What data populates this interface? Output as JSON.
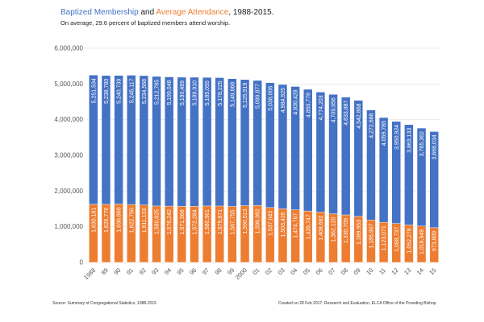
{
  "title": {
    "part1": "Baptized Membership",
    "part2": " and ",
    "part3": "Average Attendance",
    "part4": ", 1988-2015."
  },
  "subtitle": "On average, 29.6 percent of baptized members attend worship.",
  "footer": {
    "source": "Source: Summary of Congregational Statistics, 1988-2015",
    "credit": "Created on 28 Feb 2017; Research and Evaluation, ELCA Office of the Presiding Bishop"
  },
  "chart_data": {
    "type": "bar",
    "title": "Baptized Membership and Average Attendance, 1988-2015.",
    "colors": {
      "membership": "#4472c4",
      "attendance": "#ed7d31"
    },
    "categories": [
      "1988",
      "89",
      "90",
      "91",
      "92",
      "93",
      "94",
      "95",
      "96",
      "97",
      "98",
      "99",
      "2000",
      "01",
      "02",
      "03",
      "04",
      "05",
      "06",
      "07",
      "08",
      "09",
      "10",
      "11",
      "12",
      "13",
      "14",
      "15"
    ],
    "series": [
      {
        "name": "Baptized Membership",
        "values": [
          5251534,
          5238780,
          5240739,
          5245117,
          5234568,
          5212785,
          5199048,
          5190489,
          5189910,
          5185055,
          5178225,
          5149668,
          5125919,
          5099877,
          5038006,
          4984925,
          4930429,
          4850776,
          4774203,
          4709956,
          4633887,
          4542868,
          4272688,
          4059785,
          3950924,
          3863133,
          3765362,
          3668034
        ]
      },
      {
        "name": "Average Attendance",
        "values": [
          1630181,
          1626776,
          1636860,
          1622750,
          1611133,
          1580025,
          1576242,
          1571568,
          1572284,
          1580961,
          1579871,
          1567755,
          1590513,
          1596982,
          1537043,
          1503426,
          1474767,
          1439747,
          1408682,
          1362120,
          1330709,
          1289953,
          1185907,
          1123071,
          1088737,
          1052278,
          1018949,
          973809
        ]
      }
    ],
    "ylim": [
      0,
      6000000
    ],
    "yticks": [
      "0",
      "1,000,000",
      "2,000,000",
      "3,000,000",
      "4,000,000",
      "5,000,000",
      "6,000,000"
    ],
    "grid": true,
    "xlabel": "",
    "ylabel": ""
  }
}
